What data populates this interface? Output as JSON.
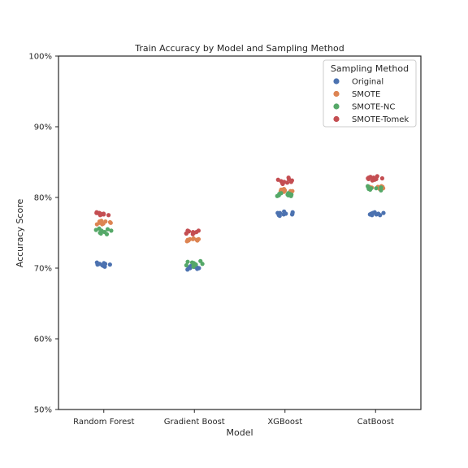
{
  "chart_data": {
    "type": "scatter",
    "subtype": "strip",
    "title": "Train Accuracy by Model and Sampling Method",
    "xlabel": "Model",
    "ylabel": "Accuracy Score",
    "categories": [
      "Random Forest",
      "Gradient Boost",
      "XGBoost",
      "CatBoost"
    ],
    "ylim": [
      0.5,
      1.0
    ],
    "yticks": [
      0.5,
      0.6,
      0.7,
      0.8,
      0.9,
      1.0
    ],
    "ytick_labels": [
      "50%",
      "60%",
      "70%",
      "80%",
      "90%",
      "100%"
    ],
    "grid": false,
    "legend": {
      "title": "Sampling Method",
      "placement": "top-right"
    },
    "series": [
      {
        "name": "Original",
        "color": "#4c72b0",
        "values": [
          [
            0.703,
            0.702,
            0.705,
            0.706,
            0.704,
            0.707,
            0.708,
            0.705,
            0.706,
            0.704
          ],
          [
            0.703,
            0.7,
            0.701,
            0.698,
            0.702,
            0.7,
            0.699,
            0.701,
            0.703,
            0.702
          ],
          [
            0.774,
            0.778,
            0.776,
            0.779,
            0.775,
            0.78,
            0.777,
            0.778,
            0.776,
            0.777
          ],
          [
            0.777,
            0.775,
            0.776,
            0.778,
            0.779,
            0.777,
            0.776,
            0.778,
            0.776,
            0.775
          ]
        ]
      },
      {
        "name": "SMOTE",
        "color": "#dd8452",
        "values": [
          [
            0.767,
            0.765,
            0.762,
            0.764,
            0.766,
            0.765,
            0.763,
            0.764,
            0.766,
            0.762
          ],
          [
            0.741,
            0.74,
            0.739,
            0.741,
            0.742,
            0.74,
            0.738,
            0.741,
            0.739,
            0.74
          ],
          [
            0.809,
            0.811,
            0.808,
            0.81,
            0.812,
            0.809,
            0.81,
            0.808,
            0.811,
            0.809
          ],
          [
            0.813,
            0.815,
            0.814,
            0.812,
            0.816,
            0.813,
            0.815,
            0.814,
            0.812,
            0.815
          ]
        ]
      },
      {
        "name": "SMOTE-NC",
        "color": "#55a868",
        "values": [
          [
            0.751,
            0.754,
            0.749,
            0.753,
            0.756,
            0.752,
            0.748,
            0.755,
            0.75,
            0.753
          ],
          [
            0.704,
            0.708,
            0.705,
            0.702,
            0.709,
            0.706,
            0.703,
            0.71,
            0.705,
            0.707
          ],
          [
            0.803,
            0.805,
            0.804,
            0.806,
            0.802,
            0.805,
            0.803,
            0.806,
            0.804,
            0.802
          ],
          [
            0.813,
            0.814,
            0.811,
            0.815,
            0.812,
            0.816,
            0.813,
            0.81,
            0.814,
            0.812
          ]
        ]
      },
      {
        "name": "SMOTE-Tomek",
        "color": "#c44e52",
        "values": [
          [
            0.776,
            0.778,
            0.775,
            0.777,
            0.779,
            0.776,
            0.778,
            0.777,
            0.775,
            0.778
          ],
          [
            0.752,
            0.749,
            0.751,
            0.753,
            0.748,
            0.752,
            0.75,
            0.751,
            0.749,
            0.753
          ],
          [
            0.822,
            0.826,
            0.82,
            0.824,
            0.828,
            0.821,
            0.823,
            0.819,
            0.825,
            0.822
          ],
          [
            0.828,
            0.826,
            0.829,
            0.824,
            0.827,
            0.83,
            0.825,
            0.828,
            0.826,
            0.827
          ]
        ]
      }
    ]
  }
}
